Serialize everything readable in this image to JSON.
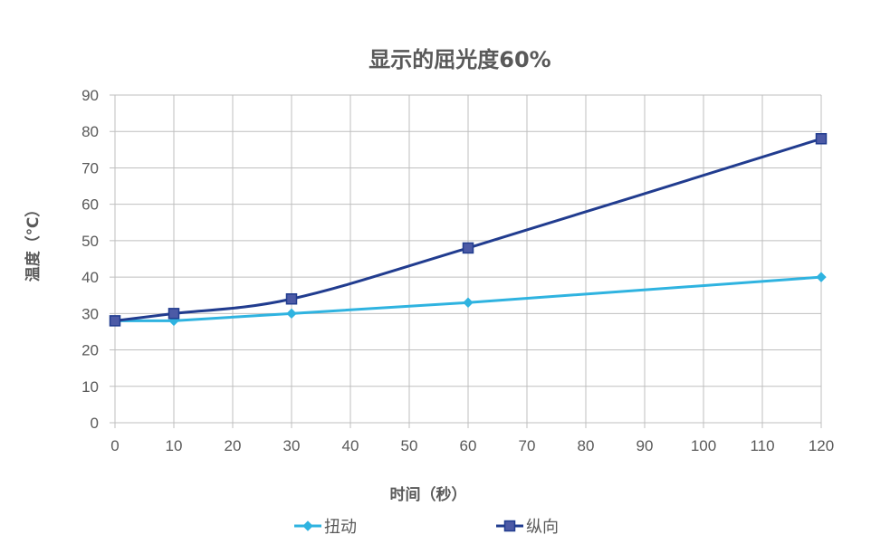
{
  "chart_data": {
    "type": "line",
    "title": "显示的屈光度60%",
    "xlabel": "时间（秒）",
    "ylabel": "温度（℃）",
    "x_ticks": [
      0,
      10,
      20,
      30,
      40,
      50,
      60,
      70,
      80,
      90,
      100,
      110,
      120
    ],
    "y_ticks": [
      0,
      10,
      20,
      30,
      40,
      50,
      60,
      70,
      80,
      90
    ],
    "xlim": [
      0,
      120
    ],
    "ylim": [
      0,
      90
    ],
    "grid": true,
    "legend_position": "bottom",
    "series": [
      {
        "name": "扭动",
        "color": "#2fb3e0",
        "marker": "diamond",
        "smooth": false,
        "x": [
          0,
          10,
          30,
          60,
          120
        ],
        "y": [
          28,
          28,
          30,
          33,
          40
        ]
      },
      {
        "name": "纵向",
        "color": "#213c8f",
        "marker_fill": "#4c5aa6",
        "marker": "square",
        "smooth": true,
        "x": [
          0,
          10,
          30,
          60,
          120
        ],
        "y": [
          28,
          30,
          34,
          48,
          78
        ]
      }
    ]
  }
}
